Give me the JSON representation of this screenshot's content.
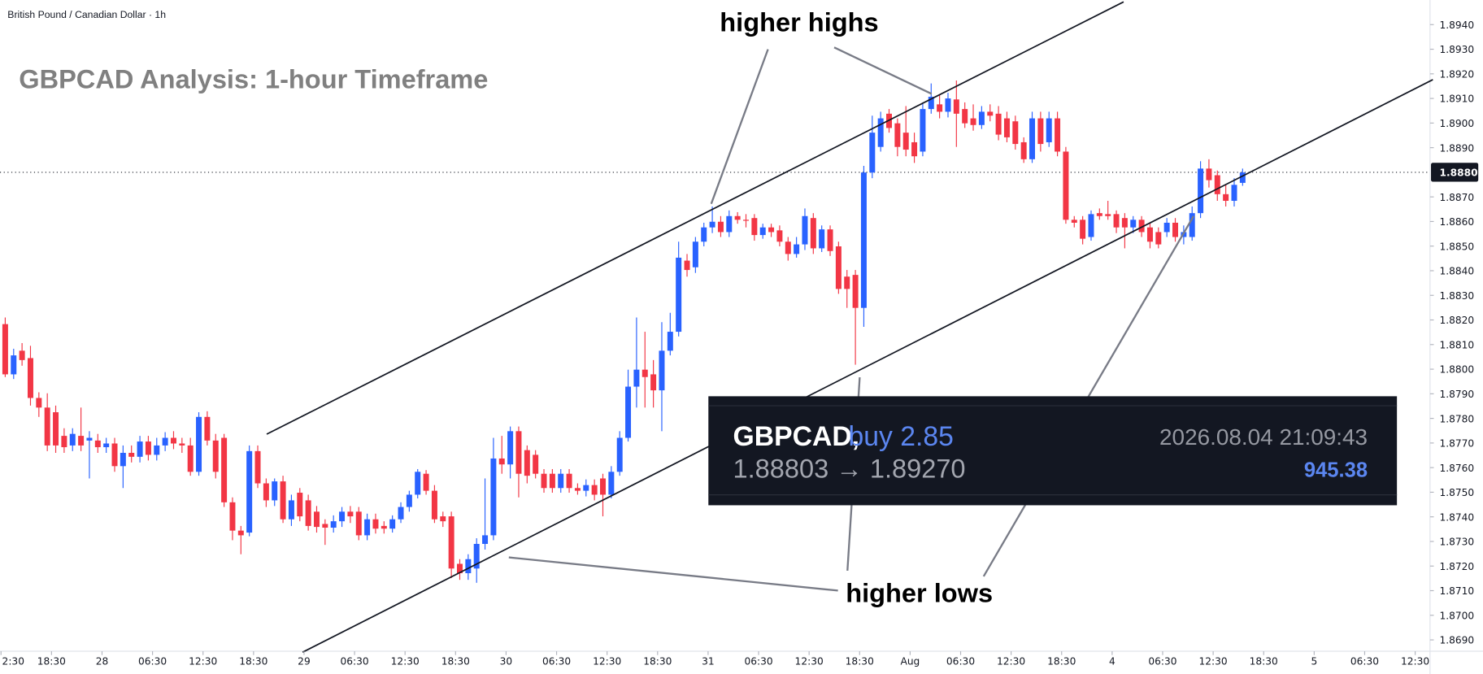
{
  "chart_data": {
    "type": "candlestick",
    "symbol_header": "British Pound / Canadian Dollar · 1h",
    "title": "GBPCAD Analysis: 1-hour Timeframe",
    "annotations": {
      "highs": "higher highs",
      "lows": "higher lows"
    },
    "trade_box": {
      "symbol": "GBPCAD,",
      "side": "buy 2.85",
      "prices": "1.88803 → 1.89270",
      "time": "2026.08.04 21:09:43",
      "amount": "945.38"
    },
    "up_color": "#2962ff",
    "down_color": "#f23645",
    "grid": false,
    "xlim": [
      -0.62,
      169.04
    ],
    "ylim": [
      1.8685,
      1.895
    ],
    "xticks": [
      {
        "value": -0.5,
        "label": "2:30"
      },
      {
        "value": 5.5,
        "label": "18:30"
      },
      {
        "value": 11.5,
        "label": "28"
      },
      {
        "value": 17.5,
        "label": "06:30"
      },
      {
        "value": 23.5,
        "label": "12:30"
      },
      {
        "value": 29.5,
        "label": "18:30"
      },
      {
        "value": 35.5,
        "label": "29"
      },
      {
        "value": 41.5,
        "label": "06:30"
      },
      {
        "value": 47.5,
        "label": "12:30"
      },
      {
        "value": 53.5,
        "label": "18:30"
      },
      {
        "value": 59.5,
        "label": "30"
      },
      {
        "value": 65.5,
        "label": "06:30"
      },
      {
        "value": 71.5,
        "label": "12:30"
      },
      {
        "value": 77.5,
        "label": "18:30"
      },
      {
        "value": 83.5,
        "label": "31"
      },
      {
        "value": 89.5,
        "label": "06:30"
      },
      {
        "value": 95.5,
        "label": "12:30"
      },
      {
        "value": 101.5,
        "label": "18:30"
      },
      {
        "value": 107.5,
        "label": "Aug"
      },
      {
        "value": 113.5,
        "label": "06:30"
      },
      {
        "value": 119.5,
        "label": "12:30"
      },
      {
        "value": 125.5,
        "label": "18:30"
      },
      {
        "value": 131.5,
        "label": "4"
      },
      {
        "value": 137.5,
        "label": "06:30"
      },
      {
        "value": 143.5,
        "label": "12:30"
      },
      {
        "value": 149.5,
        "label": "18:30"
      },
      {
        "value": 155.5,
        "label": "5"
      },
      {
        "value": 161.5,
        "label": "06:30"
      },
      {
        "value": 167.5,
        "label": "12:30"
      }
    ],
    "yticks": [
      {
        "value": 1.869,
        "label": "1.8690"
      },
      {
        "value": 1.87,
        "label": "1.8700"
      },
      {
        "value": 1.871,
        "label": "1.8710"
      },
      {
        "value": 1.872,
        "label": "1.8720"
      },
      {
        "value": 1.873,
        "label": "1.8730"
      },
      {
        "value": 1.874,
        "label": "1.8740"
      },
      {
        "value": 1.875,
        "label": "1.8750"
      },
      {
        "value": 1.876,
        "label": "1.8760"
      },
      {
        "value": 1.877,
        "label": "1.8770"
      },
      {
        "value": 1.878,
        "label": "1.8780"
      },
      {
        "value": 1.879,
        "label": "1.8790"
      },
      {
        "value": 1.88,
        "label": "1.8800"
      },
      {
        "value": 1.881,
        "label": "1.8810"
      },
      {
        "value": 1.882,
        "label": "1.8820"
      },
      {
        "value": 1.883,
        "label": "1.8830"
      },
      {
        "value": 1.884,
        "label": "1.8840"
      },
      {
        "value": 1.885,
        "label": "1.8850"
      },
      {
        "value": 1.886,
        "label": "1.8860"
      },
      {
        "value": 1.887,
        "label": "1.8870"
      },
      {
        "value": 1.889,
        "label": "1.8890"
      },
      {
        "value": 1.89,
        "label": "1.8900"
      },
      {
        "value": 1.891,
        "label": "1.8910"
      },
      {
        "value": 1.892,
        "label": "1.8920"
      },
      {
        "value": 1.893,
        "label": "1.8930"
      },
      {
        "value": 1.894,
        "label": "1.8940"
      }
    ],
    "last_price": {
      "value": 1.888,
      "label": "1.8880"
    },
    "ohlc": [
      [
        1.88183,
        1.8821,
        1.87968,
        1.87979
      ],
      [
        1.87979,
        1.88083,
        1.8796,
        1.88056
      ],
      [
        1.88075,
        1.88106,
        1.88014,
        1.88037
      ],
      [
        1.88045,
        1.88095,
        1.87852,
        1.87883
      ],
      [
        1.87883,
        1.87906,
        1.87806,
        1.87844
      ],
      [
        1.87844,
        1.87902,
        1.87667,
        1.8769
      ],
      [
        1.87825,
        1.87852,
        1.8766,
        1.8769
      ],
      [
        1.87729,
        1.8776,
        1.8766,
        1.87683
      ],
      [
        1.8769,
        1.8776,
        1.87667,
        1.87737
      ],
      [
        1.87729,
        1.87844,
        1.87667,
        1.8769
      ],
      [
        1.8771,
        1.87748,
        1.87556,
        1.87721
      ],
      [
        1.8771,
        1.87737,
        1.8766,
        1.87683
      ],
      [
        1.87683,
        1.87721,
        1.8766,
        1.87698
      ],
      [
        1.87698,
        1.87721,
        1.87583,
        1.87606
      ],
      [
        1.87606,
        1.8769,
        1.87517,
        1.8766
      ],
      [
        1.8766,
        1.8769,
        1.87621,
        1.87644
      ],
      [
        1.87644,
        1.87729,
        1.87621,
        1.87706
      ],
      [
        1.87706,
        1.87729,
        1.87629,
        1.87652
      ],
      [
        1.87652,
        1.87721,
        1.87629,
        1.8769
      ],
      [
        1.8769,
        1.87744,
        1.87667,
        1.87721
      ],
      [
        1.87721,
        1.87748,
        1.87675,
        1.87698
      ],
      [
        1.87698,
        1.87721,
        1.8766,
        1.8769
      ],
      [
        1.8769,
        1.87721,
        1.87567,
        1.87583
      ],
      [
        1.87583,
        1.87825,
        1.87567,
        1.87806
      ],
      [
        1.87806,
        1.87829,
        1.8769,
        1.8771
      ],
      [
        1.8771,
        1.87737,
        1.87556,
        1.87583
      ],
      [
        1.87721,
        1.87737,
        1.8744,
        1.87459
      ],
      [
        1.87459,
        1.87479,
        1.87305,
        1.87344
      ],
      [
        1.87344,
        1.87363,
        1.87248,
        1.87325
      ],
      [
        1.87336,
        1.8769,
        1.87321,
        1.87667
      ],
      [
        1.87667,
        1.8769,
        1.87517,
        1.87536
      ],
      [
        1.87536,
        1.87556,
        1.8744,
        1.87467
      ],
      [
        1.87467,
        1.87556,
        1.87444,
        1.87544
      ],
      [
        1.87544,
        1.87567,
        1.87375,
        1.8739
      ],
      [
        1.8739,
        1.8749,
        1.87363,
        1.87467
      ],
      [
        1.87498,
        1.87517,
        1.87382,
        1.87402
      ],
      [
        1.87467,
        1.8749,
        1.87344,
        1.87363
      ],
      [
        1.87421,
        1.87444,
        1.87336,
        1.87359
      ],
      [
        1.87371,
        1.8739,
        1.87286,
        1.87356
      ],
      [
        1.87356,
        1.87406,
        1.87336,
        1.87382
      ],
      [
        1.87382,
        1.8744,
        1.87359,
        1.87421
      ],
      [
        1.87421,
        1.87444,
        1.87375,
        1.87402
      ],
      [
        1.87421,
        1.8744,
        1.87305,
        1.87325
      ],
      [
        1.87325,
        1.87413,
        1.87305,
        1.8739
      ],
      [
        1.8739,
        1.87413,
        1.87332,
        1.87352
      ],
      [
        1.87363,
        1.87382,
        1.87332,
        1.87352
      ],
      [
        1.87352,
        1.87406,
        1.87336,
        1.8739
      ],
      [
        1.8739,
        1.87459,
        1.87375,
        1.8744
      ],
      [
        1.8744,
        1.87506,
        1.87421,
        1.8749
      ],
      [
        1.8749,
        1.87594,
        1.87475,
        1.87583
      ],
      [
        1.87575,
        1.8759,
        1.8749,
        1.87506
      ],
      [
        1.87506,
        1.87529,
        1.87375,
        1.8739
      ],
      [
        1.87402,
        1.87421,
        1.87359,
        1.87382
      ],
      [
        1.87402,
        1.87421,
        1.87151,
        1.8719
      ],
      [
        1.87209,
        1.87228,
        1.87144,
        1.87171
      ],
      [
        1.87171,
        1.87248,
        1.87144,
        1.87228
      ],
      [
        1.8719,
        1.87313,
        1.87132,
        1.8729
      ],
      [
        1.8729,
        1.87556,
        1.87267,
        1.87325
      ],
      [
        1.87325,
        1.87721,
        1.87305,
        1.87637
      ],
      [
        1.87637,
        1.87729,
        1.87575,
        1.87613
      ],
      [
        1.87613,
        1.87767,
        1.87556,
        1.87748
      ],
      [
        1.87748,
        1.87767,
        1.87479,
        1.87575
      ],
      [
        1.87671,
        1.8769,
        1.87536,
        1.87567
      ],
      [
        1.87652,
        1.87671,
        1.87556,
        1.87575
      ],
      [
        1.87575,
        1.87594,
        1.87498,
        1.87517
      ],
      [
        1.87575,
        1.87594,
        1.87498,
        1.87517
      ],
      [
        1.87517,
        1.87594,
        1.87498,
        1.87575
      ],
      [
        1.87575,
        1.87594,
        1.87498,
        1.87517
      ],
      [
        1.87517,
        1.87536,
        1.8749,
        1.87506
      ],
      [
        1.87506,
        1.87552,
        1.87483,
        1.87529
      ],
      [
        1.87529,
        1.87552,
        1.87467,
        1.8749
      ],
      [
        1.87556,
        1.87575,
        1.87402,
        1.8749
      ],
      [
        1.8749,
        1.87606,
        1.87475,
        1.87583
      ],
      [
        1.87583,
        1.87748,
        1.87567,
        1.87721
      ],
      [
        1.87721,
        1.87998,
        1.87706,
        1.87929
      ],
      [
        1.87929,
        1.8821,
        1.87844,
        1.87998
      ],
      [
        1.87998,
        1.88152,
        1.87844,
        1.87968
      ],
      [
        1.87979,
        1.88037,
        1.87844,
        1.87914
      ],
      [
        1.87914,
        1.88191,
        1.87748,
        1.88075
      ],
      [
        1.88075,
        1.88229,
        1.88056,
        1.88152
      ],
      [
        1.88152,
        1.88518,
        1.88133,
        1.88453
      ],
      [
        1.88441,
        1.88468,
        1.88376,
        1.88403
      ],
      [
        1.88414,
        1.88537,
        1.88391,
        1.88518
      ],
      [
        1.88518,
        1.88595,
        1.88499,
        1.88576
      ],
      [
        1.88576,
        1.88661,
        1.88553,
        1.88599
      ],
      [
        1.88599,
        1.88622,
        1.88537,
        1.88557
      ],
      [
        1.88557,
        1.88645,
        1.88537,
        1.88622
      ],
      [
        1.88622,
        1.88638,
        1.88591,
        1.88607
      ],
      [
        1.88607,
        1.8863,
        1.88576,
        1.88603
      ],
      [
        1.88614,
        1.8863,
        1.88522,
        1.88545
      ],
      [
        1.88545,
        1.88591,
        1.8853,
        1.88576
      ],
      [
        1.88576,
        1.88591,
        1.88537,
        1.88557
      ],
      [
        1.88564,
        1.88584,
        1.88499,
        1.88518
      ],
      [
        1.88518,
        1.88537,
        1.88441,
        1.88468
      ],
      [
        1.88468,
        1.88537,
        1.88453,
        1.88507
      ],
      [
        1.88507,
        1.88653,
        1.88484,
        1.88622
      ],
      [
        1.88614,
        1.88634,
        1.88468,
        1.88491
      ],
      [
        1.88491,
        1.88584,
        1.88476,
        1.88568
      ],
      [
        1.88568,
        1.88584,
        1.8846,
        1.8848
      ],
      [
        1.88499,
        1.88518,
        1.88306,
        1.88326
      ],
      [
        1.88376,
        1.88403,
        1.88249,
        1.88326
      ],
      [
        1.88383,
        1.88403,
        1.88018,
        1.88249
      ],
      [
        1.88249,
        1.88826,
        1.88172,
        1.88799
      ],
      [
        1.88799,
        1.8903,
        1.88776,
        1.88961
      ],
      [
        1.88903,
        1.89046,
        1.88884,
        1.89019
      ],
      [
        1.89038,
        1.89057,
        1.88961,
        1.8898
      ],
      [
        1.88999,
        1.89019,
        1.88865,
        1.88903
      ],
      [
        1.88961,
        1.89069,
        1.88865,
        1.88892
      ],
      [
        1.88922,
        1.88961,
        1.88838,
        1.88865
      ],
      [
        1.88884,
        1.89084,
        1.88865,
        1.89057
      ],
      [
        1.89057,
        1.89161,
        1.89038,
        1.89107
      ],
      [
        1.89076,
        1.89115,
        1.89019,
        1.89046
      ],
      [
        1.89046,
        1.89123,
        1.89023,
        1.891
      ],
      [
        1.89096,
        1.89173,
        1.88903,
        1.89038
      ],
      [
        1.89057,
        1.89084,
        1.8898,
        1.88999
      ],
      [
        1.89019,
        1.89076,
        1.88969,
        1.88992
      ],
      [
        1.88992,
        1.89069,
        1.88976,
        1.89046
      ],
      [
        1.89046,
        1.89076,
        1.89007,
        1.8903
      ],
      [
        1.89038,
        1.89069,
        1.8893,
        1.88953
      ],
      [
        1.89019,
        1.89046,
        1.88922,
        1.88942
      ],
      [
        1.89007,
        1.8903,
        1.88892,
        1.88915
      ],
      [
        1.88922,
        1.88942,
        1.88838,
        1.88853
      ],
      [
        1.88853,
        1.89046,
        1.88838,
        1.89019
      ],
      [
        1.89019,
        1.89046,
        1.88884,
        1.88915
      ],
      [
        1.88922,
        1.89046,
        1.88903,
        1.89019
      ],
      [
        1.89019,
        1.89046,
        1.88865,
        1.88884
      ],
      [
        1.88884,
        1.88903,
        1.88591,
        1.88607
      ],
      [
        1.88607,
        1.88622,
        1.88576,
        1.88595
      ],
      [
        1.88607,
        1.88622,
        1.88507,
        1.8853
      ],
      [
        1.88537,
        1.88645,
        1.88522,
        1.8863
      ],
      [
        1.88634,
        1.88653,
        1.88607,
        1.88622
      ],
      [
        1.8863,
        1.88684,
        1.88607,
        1.88622
      ],
      [
        1.8863,
        1.88645,
        1.88553,
        1.88576
      ],
      [
        1.88614,
        1.88634,
        1.88491,
        1.88576
      ],
      [
        1.88576,
        1.88622,
        1.88553,
        1.88607
      ],
      [
        1.88607,
        1.88622,
        1.88537,
        1.88557
      ],
      [
        1.88576,
        1.88595,
        1.88491,
        1.88518
      ],
      [
        1.88557,
        1.88576,
        1.88491,
        1.88507
      ],
      [
        1.88557,
        1.88614,
        1.88537,
        1.88595
      ],
      [
        1.88595,
        1.88614,
        1.88518,
        1.88537
      ],
      [
        1.88537,
        1.88584,
        1.88507,
        1.88557
      ],
      [
        1.88537,
        1.88661,
        1.88522,
        1.88634
      ],
      [
        1.88634,
        1.88845,
        1.88614,
        1.88815
      ],
      [
        1.88815,
        1.88853,
        1.88738,
        1.88768
      ],
      [
        1.88788,
        1.88807,
        1.88684,
        1.88711
      ],
      [
        1.88711,
        1.88749,
        1.88661,
        1.88684
      ],
      [
        1.88684,
        1.88776,
        1.88661,
        1.88749
      ],
      [
        1.88757,
        1.88815,
        1.88745,
        1.88799
      ]
    ]
  }
}
